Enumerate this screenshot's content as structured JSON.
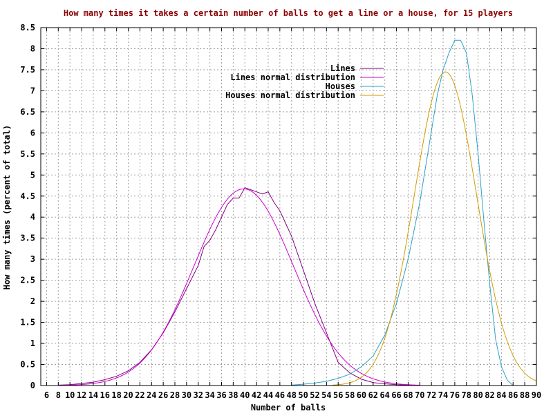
{
  "chart_data": {
    "type": "line",
    "title": "How many times it takes a certain number of balls to get a line or a house, for 15 players",
    "xlabel": "Number of balls",
    "ylabel": "How many times (percent of total)",
    "xlim": [
      5,
      90
    ],
    "ylim": [
      0,
      8.5
    ],
    "x_ticks": [
      6,
      8,
      10,
      12,
      14,
      16,
      18,
      20,
      22,
      24,
      26,
      28,
      30,
      32,
      34,
      36,
      38,
      40,
      42,
      44,
      46,
      48,
      50,
      52,
      54,
      56,
      58,
      60,
      62,
      64,
      66,
      68,
      70,
      72,
      74,
      76,
      78,
      80,
      82,
      84,
      86,
      88,
      90
    ],
    "y_ticks": [
      0,
      0.5,
      1,
      1.5,
      2,
      2.5,
      3,
      3.5,
      4,
      4.5,
      5,
      5.5,
      6,
      6.5,
      7,
      7.5,
      8,
      8.5
    ],
    "y_tick_labels": [
      "0",
      "0.5",
      "1",
      "1.5",
      "2",
      "2.5",
      "3",
      "3.5",
      "4",
      "4.5",
      "5",
      "5.5",
      "6",
      "6.5",
      "7",
      "7.5",
      "8",
      "8.5"
    ],
    "grid": true,
    "legend_position": "top-center",
    "series": [
      {
        "name": "Lines",
        "color": "#800080",
        "x": [
          8,
          10,
          12,
          14,
          16,
          18,
          20,
          22,
          24,
          26,
          28,
          30,
          32,
          33,
          34,
          35,
          36,
          37,
          38,
          39,
          40,
          41,
          42,
          43,
          44,
          45,
          46,
          47,
          48,
          50,
          52,
          54,
          56,
          58,
          60,
          62,
          64,
          66,
          68,
          70
        ],
        "y": [
          0.01,
          0.02,
          0.05,
          0.08,
          0.14,
          0.22,
          0.35,
          0.55,
          0.85,
          1.25,
          1.75,
          2.3,
          2.85,
          3.3,
          3.45,
          3.7,
          4.0,
          4.3,
          4.45,
          4.45,
          4.7,
          4.65,
          4.6,
          4.55,
          4.6,
          4.35,
          4.15,
          3.85,
          3.55,
          2.75,
          1.95,
          1.25,
          0.55,
          0.3,
          0.15,
          0.07,
          0.04,
          0.02,
          0.01,
          0.0
        ]
      },
      {
        "name": "Lines normal distribution",
        "color": "#cc00cc",
        "mean": 39.8,
        "stdev": 8.55,
        "peak": 4.67,
        "x_range": [
          8,
          70
        ]
      },
      {
        "name": "Houses",
        "color": "#2aa1c9",
        "x": [
          48,
          50,
          52,
          54,
          56,
          58,
          60,
          62,
          64,
          66,
          68,
          70,
          71,
          72,
          73,
          74,
          75,
          76,
          77,
          78,
          79,
          80,
          81,
          82,
          83,
          84,
          85,
          86
        ],
        "y": [
          0.01,
          0.03,
          0.06,
          0.1,
          0.17,
          0.27,
          0.45,
          0.7,
          1.2,
          1.95,
          3.0,
          4.35,
          5.2,
          6.05,
          6.9,
          7.5,
          7.9,
          8.2,
          8.2,
          7.9,
          6.9,
          5.5,
          3.9,
          2.4,
          1.1,
          0.45,
          0.13,
          0.0
        ]
      },
      {
        "name": "Houses normal distribution",
        "color": "#d29b00",
        "mean": 74.4,
        "stdev": 5.35,
        "peak": 7.45,
        "x_range": [
          55,
          90
        ]
      }
    ]
  }
}
